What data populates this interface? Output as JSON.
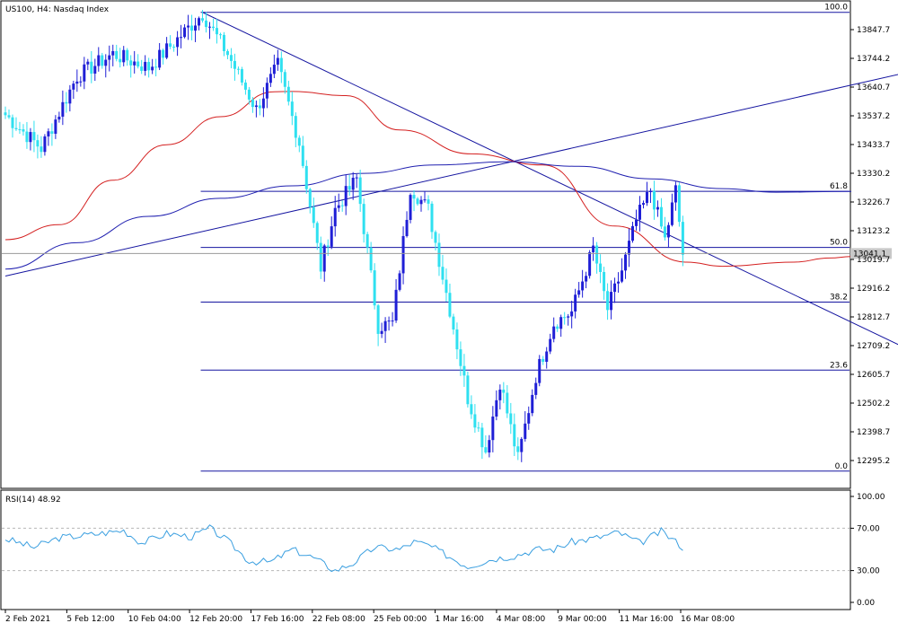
{
  "chart_data": [
    {
      "type": "candlestick",
      "title": "US100, H4:  Nasdaq Index",
      "symbol": "US100",
      "timeframe": "H4",
      "instrument": "Nasdaq Index",
      "y_ticks": [
        "13847.7",
        "13744.2",
        "13640.7",
        "13537.2",
        "13433.7",
        "13330.2",
        "13226.7",
        "13123.2",
        "13019.7",
        "12916.2",
        "12812.7",
        "12709.2",
        "12605.7",
        "12502.2",
        "12398.7",
        "12295.2"
      ],
      "ylim": [
        12250,
        13930
      ],
      "current_price": "13041.1",
      "x_ticks": [
        "2 Feb 2021",
        "5 Feb 12:00",
        "10 Feb 04:00",
        "12 Feb 20:00",
        "17 Feb 16:00",
        "22 Feb 08:00",
        "25 Feb 00:00",
        "1 Mar 16:00",
        "4 Mar 08:00",
        "9 Mar 00:00",
        "11 Mar 16:00",
        "16 Mar 08:00"
      ],
      "bar_count": 236,
      "fibonacci": {
        "high": 13910,
        "low": 12257,
        "levels": [
          {
            "label": "100.0",
            "price": 13910
          },
          {
            "label": "61.8",
            "price": 13265
          },
          {
            "label": "50.0",
            "price": 13063
          },
          {
            "label": "38.2",
            "price": 12866
          },
          {
            "label": "23.6",
            "price": 12621
          },
          {
            "label": "0.0",
            "price": 12257
          }
        ]
      },
      "colors": {
        "bull": "#1f1fd6",
        "bear": "#2fe0f0",
        "ma_red": "#d42020",
        "ma_blue": "#2020b0",
        "line": "#1515a0",
        "price_line": "#9a9a9a",
        "rsi": "#3a9fe0"
      },
      "moving_averages": [
        {
          "color": "red",
          "points": [
            [
              0,
              13091
            ],
            [
              15,
              13145
            ],
            [
              30,
              13305
            ],
            [
              45,
              13433
            ],
            [
              60,
              13534
            ],
            [
              75,
              13624
            ],
            [
              80,
              13625
            ],
            [
              95,
              13610
            ],
            [
              110,
              13486
            ],
            [
              130,
              13400
            ],
            [
              150,
              13360
            ],
            [
              170,
              13140
            ],
            [
              190,
              13010
            ],
            [
              200,
              12995
            ],
            [
              220,
              13010
            ],
            [
              230,
              13025
            ],
            [
              236,
              13030
            ]
          ]
        },
        {
          "color": "blue",
          "points": [
            [
              0,
              12985
            ],
            [
              20,
              13080
            ],
            [
              40,
              13175
            ],
            [
              60,
              13240
            ],
            [
              80,
              13285
            ],
            [
              100,
              13330
            ],
            [
              120,
              13360
            ],
            [
              140,
              13372
            ],
            [
              160,
              13355
            ],
            [
              180,
              13310
            ],
            [
              200,
              13275
            ],
            [
              215,
              13262
            ],
            [
              236,
              13265
            ]
          ]
        }
      ],
      "trendlines": [
        {
          "from": [
            55,
            13910
          ],
          "to": [
            295,
            12430
          ]
        },
        {
          "from": [
            0,
            12960
          ],
          "to": [
            295,
            13820
          ]
        }
      ],
      "ohlc": [
        {
          "anchor": 0,
          "price": 13540
        },
        {
          "anchor": 10,
          "price": 13420
        },
        {
          "anchor": 20,
          "price": 13680
        },
        {
          "anchor": 30,
          "price": 13760
        },
        {
          "anchor": 40,
          "price": 13710
        },
        {
          "anchor": 50,
          "price": 13840
        },
        {
          "anchor": 55,
          "price": 13905
        },
        {
          "anchor": 62,
          "price": 13760
        },
        {
          "anchor": 70,
          "price": 13560
        },
        {
          "anchor": 76,
          "price": 13720
        },
        {
          "anchor": 82,
          "price": 13440
        },
        {
          "anchor": 88,
          "price": 12990
        },
        {
          "anchor": 92,
          "price": 13200
        },
        {
          "anchor": 98,
          "price": 13310
        },
        {
          "anchor": 104,
          "price": 12780
        },
        {
          "anchor": 108,
          "price": 12790
        },
        {
          "anchor": 113,
          "price": 13280
        },
        {
          "anchor": 118,
          "price": 13200
        },
        {
          "anchor": 124,
          "price": 12840
        },
        {
          "anchor": 129,
          "price": 12520
        },
        {
          "anchor": 134,
          "price": 12330
        },
        {
          "anchor": 138,
          "price": 12580
        },
        {
          "anchor": 143,
          "price": 12300
        },
        {
          "anchor": 148,
          "price": 12600
        },
        {
          "anchor": 153,
          "price": 12790
        },
        {
          "anchor": 158,
          "price": 12830
        },
        {
          "anchor": 164,
          "price": 13060
        },
        {
          "anchor": 168,
          "price": 12840
        },
        {
          "anchor": 172,
          "price": 12980
        },
        {
          "anchor": 176,
          "price": 13160
        },
        {
          "anchor": 180,
          "price": 13270
        },
        {
          "anchor": 184,
          "price": 13090
        },
        {
          "anchor": 187,
          "price": 13270
        },
        {
          "anchor": 189,
          "price": 13040
        }
      ],
      "rsi": {
        "label": "RSI(14) 48.92",
        "period": 14,
        "last": 48.92,
        "y_ticks": [
          "100.00",
          "70.00",
          "30.00",
          "0.00"
        ],
        "levels": [
          70,
          30
        ],
        "ylim": [
          0,
          100
        ],
        "series": [
          [
            0,
            60
          ],
          [
            8,
            52
          ],
          [
            15,
            61
          ],
          [
            24,
            64
          ],
          [
            33,
            68
          ],
          [
            38,
            56
          ],
          [
            45,
            65
          ],
          [
            52,
            62
          ],
          [
            57,
            70
          ],
          [
            62,
            58
          ],
          [
            68,
            39
          ],
          [
            74,
            38
          ],
          [
            80,
            50
          ],
          [
            86,
            42
          ],
          [
            92,
            30
          ],
          [
            97,
            37
          ],
          [
            103,
            52
          ],
          [
            110,
            50
          ],
          [
            114,
            57
          ],
          [
            118,
            54
          ],
          [
            124,
            43
          ],
          [
            129,
            34
          ],
          [
            136,
            41
          ],
          [
            142,
            44
          ],
          [
            148,
            50
          ],
          [
            153,
            50
          ],
          [
            158,
            57
          ],
          [
            165,
            61
          ],
          [
            171,
            66
          ],
          [
            177,
            56
          ],
          [
            183,
            67
          ],
          [
            188,
            55
          ],
          [
            189,
            49
          ]
        ]
      }
    }
  ]
}
